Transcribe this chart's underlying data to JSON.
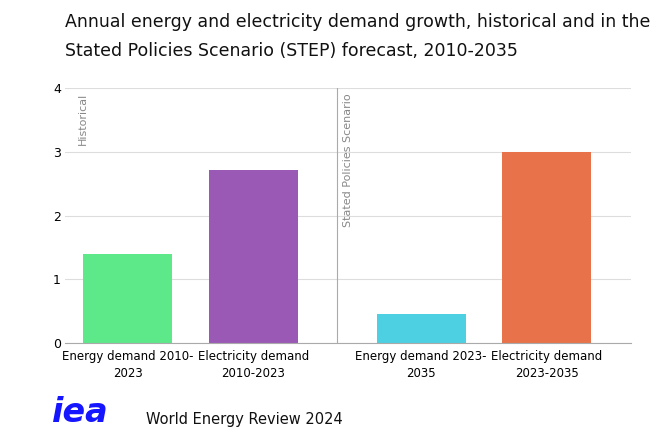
{
  "title_line1": "Annual energy and electricity demand growth, historical and in the",
  "title_line2": "Stated Policies Scenario (STEP) forecast, 2010-2035",
  "categories": [
    "Energy demand 2010-\n2023",
    "Electricity demand\n2010-2023",
    "Energy demand 2023-\n2035",
    "Electricity demand\n2023-2035"
  ],
  "values": [
    1.4,
    2.72,
    0.45,
    3.0
  ],
  "bar_colors": [
    "#5de88a",
    "#9b59b6",
    "#4dd0e1",
    "#e8734a"
  ],
  "ylim": [
    0,
    4
  ],
  "yticks": [
    0,
    1,
    2,
    3,
    4
  ],
  "label_historical": "Historical",
  "label_forecast": "Stated Policies Scenario",
  "footer_text": "World Energy Review 2024",
  "iea_color": "#1515ff",
  "background_color": "#ffffff",
  "grid_color": "#dddddd",
  "title_fontsize": 12.5,
  "tick_fontsize": 9,
  "label_fontsize": 8.5
}
